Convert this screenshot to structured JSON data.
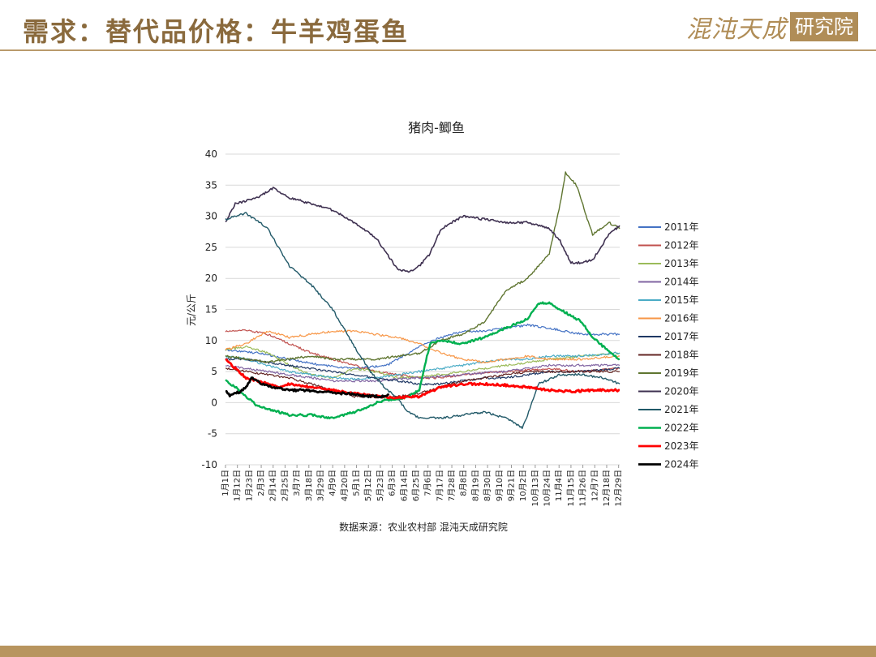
{
  "slide": {
    "title": "需求：替代品价格：牛羊鸡蛋鱼",
    "logo_text": "混沌天成",
    "logo_box": "研究院"
  },
  "chart_data": {
    "type": "line",
    "title": "猪肉-鲫鱼",
    "ylabel": "元/公斤",
    "xlabel": "",
    "ylim": [
      -10,
      40
    ],
    "yticks": [
      -10,
      -5,
      0,
      5,
      10,
      15,
      20,
      25,
      30,
      35,
      40
    ],
    "grid": "horizontal",
    "legend_position": "right",
    "source": "数据来源：农业农村部 混沌天成研究院",
    "x_tick_labels": [
      "1月1日",
      "1月12日",
      "1月23日",
      "2月3日",
      "2月14日",
      "2月25日",
      "3月7日",
      "3月18日",
      "3月29日",
      "4月9日",
      "4月20日",
      "5月1日",
      "5月12日",
      "5月23日",
      "6月3日",
      "6月14日",
      "6月25日",
      "7月6日",
      "7月17日",
      "7月28日",
      "8月8日",
      "8月19日",
      "8月30日",
      "9月10日",
      "9月21日",
      "10月2日",
      "10月13日",
      "10月24日",
      "11月4日",
      "11月15日",
      "11月26日",
      "12月7日",
      "12月18日",
      "12月29日"
    ],
    "x_unit": "day_of_year",
    "series": [
      {
        "name": "2011年",
        "color": "#4472c4",
        "width": 1.2,
        "x": [
          1,
          30,
          60,
          90,
          120,
          150,
          165,
          180,
          200,
          220,
          240,
          260,
          280,
          300,
          330,
          365
        ],
        "values": [
          8.5,
          8.0,
          7.0,
          6.0,
          5.5,
          6.0,
          7.5,
          9.0,
          10.5,
          11.5,
          11.5,
          12.0,
          12.5,
          12.0,
          11.0,
          11.0
        ]
      },
      {
        "name": "2012年",
        "color": "#c0504d",
        "width": 1.2,
        "x": [
          1,
          20,
          40,
          60,
          80,
          100,
          120,
          140,
          160,
          180,
          200,
          220,
          240,
          260,
          280,
          300,
          330,
          365
        ],
        "values": [
          11.5,
          11.7,
          11.0,
          9.5,
          8.0,
          7.0,
          6.0,
          5.0,
          4.5,
          4.0,
          4.0,
          4.5,
          4.8,
          5.0,
          5.2,
          5.5,
          5.0,
          5.5
        ]
      },
      {
        "name": "2013年",
        "color": "#9bbb59",
        "width": 1.2,
        "x": [
          1,
          20,
          40,
          60,
          80,
          100,
          120,
          140,
          160,
          180,
          200,
          220,
          240,
          260,
          280,
          300,
          330,
          365
        ],
        "values": [
          8.5,
          9.0,
          8.0,
          6.0,
          4.5,
          4.0,
          5.5,
          5.0,
          4.0,
          4.2,
          4.5,
          5.0,
          5.5,
          6.0,
          6.5,
          7.0,
          7.5,
          8.0
        ]
      },
      {
        "name": "2014年",
        "color": "#8064a2",
        "width": 1.2,
        "x": [
          1,
          20,
          40,
          60,
          80,
          100,
          120,
          140,
          160,
          180,
          200,
          220,
          240,
          260,
          280,
          300,
          330,
          365
        ],
        "values": [
          6.0,
          5.5,
          5.0,
          4.5,
          4.0,
          3.5,
          3.5,
          3.5,
          3.8,
          4.0,
          4.2,
          4.5,
          4.8,
          5.0,
          5.5,
          6.0,
          6.0,
          6.0
        ]
      },
      {
        "name": "2015年",
        "color": "#4bacc6",
        "width": 1.2,
        "x": [
          1,
          20,
          40,
          60,
          80,
          100,
          120,
          140,
          160,
          180,
          200,
          220,
          240,
          260,
          280,
          300,
          330,
          365
        ],
        "values": [
          7.5,
          7.0,
          6.0,
          5.0,
          4.5,
          4.0,
          3.8,
          4.0,
          4.5,
          5.0,
          5.5,
          6.0,
          6.5,
          7.0,
          7.0,
          7.5,
          7.5,
          8.0
        ]
      },
      {
        "name": "2016年",
        "color": "#f79646",
        "width": 1.2,
        "x": [
          1,
          20,
          40,
          60,
          80,
          100,
          120,
          140,
          160,
          180,
          200,
          220,
          240,
          260,
          280,
          300,
          330,
          365
        ],
        "values": [
          8.5,
          9.5,
          11.5,
          10.5,
          11.0,
          11.5,
          11.5,
          11.0,
          10.5,
          9.5,
          8.0,
          7.0,
          6.5,
          7.0,
          7.5,
          7.0,
          7.0,
          7.5
        ]
      },
      {
        "name": "2017年",
        "color": "#1f3864",
        "width": 1.2,
        "x": [
          1,
          20,
          40,
          60,
          80,
          100,
          120,
          140,
          160,
          180,
          200,
          220,
          240,
          260,
          280,
          300,
          330,
          365
        ],
        "values": [
          7.0,
          7.0,
          6.5,
          6.0,
          5.5,
          5.0,
          4.5,
          4.0,
          3.5,
          3.0,
          3.0,
          3.5,
          4.0,
          4.0,
          4.5,
          5.0,
          5.0,
          5.5
        ]
      },
      {
        "name": "2018年",
        "color": "#632523",
        "width": 1.2,
        "x": [
          1,
          20,
          40,
          60,
          80,
          100,
          120,
          140,
          160,
          180,
          200,
          220,
          240,
          260,
          280,
          300,
          330,
          365
        ],
        "values": [
          5.5,
          5.0,
          4.5,
          4.0,
          3.0,
          2.0,
          1.0,
          1.0,
          1.0,
          1.5,
          2.5,
          3.5,
          4.0,
          4.5,
          5.0,
          5.0,
          5.0,
          5.0
        ]
      },
      {
        "name": "2019年",
        "color": "#5f7530",
        "width": 1.4,
        "x": [
          1,
          20,
          40,
          60,
          80,
          100,
          120,
          140,
          160,
          180,
          200,
          220,
          240,
          260,
          280,
          300,
          310,
          315,
          325,
          340,
          355,
          365
        ],
        "values": [
          7.5,
          7.0,
          6.5,
          7.0,
          7.5,
          7.0,
          7.0,
          7.0,
          7.5,
          8.0,
          10.0,
          11.0,
          13.0,
          18.0,
          20.0,
          24.0,
          32.0,
          37.0,
          35.0,
          27.0,
          29.0,
          28.0
        ]
      },
      {
        "name": "2020年",
        "color": "#3f3151",
        "width": 1.6,
        "x": [
          1,
          10,
          30,
          45,
          60,
          80,
          100,
          120,
          140,
          150,
          160,
          170,
          180,
          190,
          200,
          220,
          240,
          260,
          280,
          300,
          310,
          320,
          330,
          340,
          355,
          365
        ],
        "values": [
          29.0,
          32.0,
          33.0,
          34.5,
          33.0,
          32.0,
          31.0,
          29.0,
          26.5,
          24.0,
          21.5,
          21.0,
          22.0,
          24.0,
          28.0,
          30.0,
          29.5,
          29.0,
          29.0,
          28.0,
          26.0,
          22.5,
          22.5,
          23.0,
          27.0,
          28.5
        ]
      },
      {
        "name": "2021年",
        "color": "#215968",
        "width": 1.4,
        "x": [
          1,
          20,
          40,
          60,
          80,
          100,
          120,
          135,
          145,
          160,
          170,
          180,
          200,
          220,
          240,
          260,
          270,
          275,
          280,
          290,
          310,
          330,
          350,
          365
        ],
        "values": [
          29.5,
          30.5,
          28.0,
          22.0,
          19.0,
          15.0,
          9.0,
          5.0,
          3.0,
          0.5,
          -1.5,
          -2.5,
          -2.5,
          -2.0,
          -1.5,
          -2.5,
          -3.5,
          -4.0,
          -2.0,
          3.0,
          4.5,
          4.5,
          4.0,
          3.0
        ]
      },
      {
        "name": "2022年",
        "color": "#00b050",
        "width": 2.4,
        "x": [
          1,
          10,
          20,
          30,
          40,
          60,
          80,
          100,
          110,
          120,
          130,
          140,
          150,
          160,
          170,
          180,
          185,
          190,
          200,
          220,
          240,
          260,
          280,
          290,
          300,
          310,
          320,
          330,
          340,
          350,
          360,
          365
        ],
        "values": [
          3.5,
          2.5,
          1.0,
          -0.5,
          -1.0,
          -2.0,
          -2.0,
          -2.5,
          -2.0,
          -1.5,
          -1.0,
          0.0,
          0.5,
          0.5,
          1.0,
          2.0,
          6.0,
          9.5,
          10.0,
          9.5,
          10.5,
          12.0,
          13.5,
          16.0,
          16.0,
          15.0,
          14.0,
          13.0,
          10.5,
          9.0,
          7.5,
          7.0
        ]
      },
      {
        "name": "2023年",
        "color": "#ff0000",
        "width": 2.8,
        "x": [
          1,
          10,
          20,
          30,
          40,
          50,
          60,
          80,
          100,
          120,
          140,
          160,
          180,
          200,
          220,
          240,
          260,
          280,
          300,
          320,
          340,
          365
        ],
        "values": [
          7.0,
          5.5,
          4.0,
          3.5,
          3.0,
          2.5,
          3.0,
          2.5,
          2.0,
          1.5,
          1.0,
          0.8,
          1.0,
          2.5,
          3.0,
          3.0,
          2.8,
          2.5,
          2.0,
          1.8,
          2.0,
          2.0
        ]
      },
      {
        "name": "2024年",
        "color": "#000000",
        "width": 2.8,
        "x": [
          1,
          5,
          10,
          15,
          20,
          25,
          30,
          35,
          40,
          45,
          55,
          65,
          75,
          85,
          95,
          105,
          115,
          125,
          135,
          145,
          152
        ],
        "values": [
          2.0,
          1.2,
          1.5,
          1.8,
          2.5,
          4.0,
          3.5,
          3.0,
          2.8,
          2.5,
          2.2,
          2.0,
          2.0,
          1.8,
          1.8,
          1.5,
          1.5,
          1.2,
          1.0,
          1.0,
          1.2
        ]
      }
    ]
  }
}
